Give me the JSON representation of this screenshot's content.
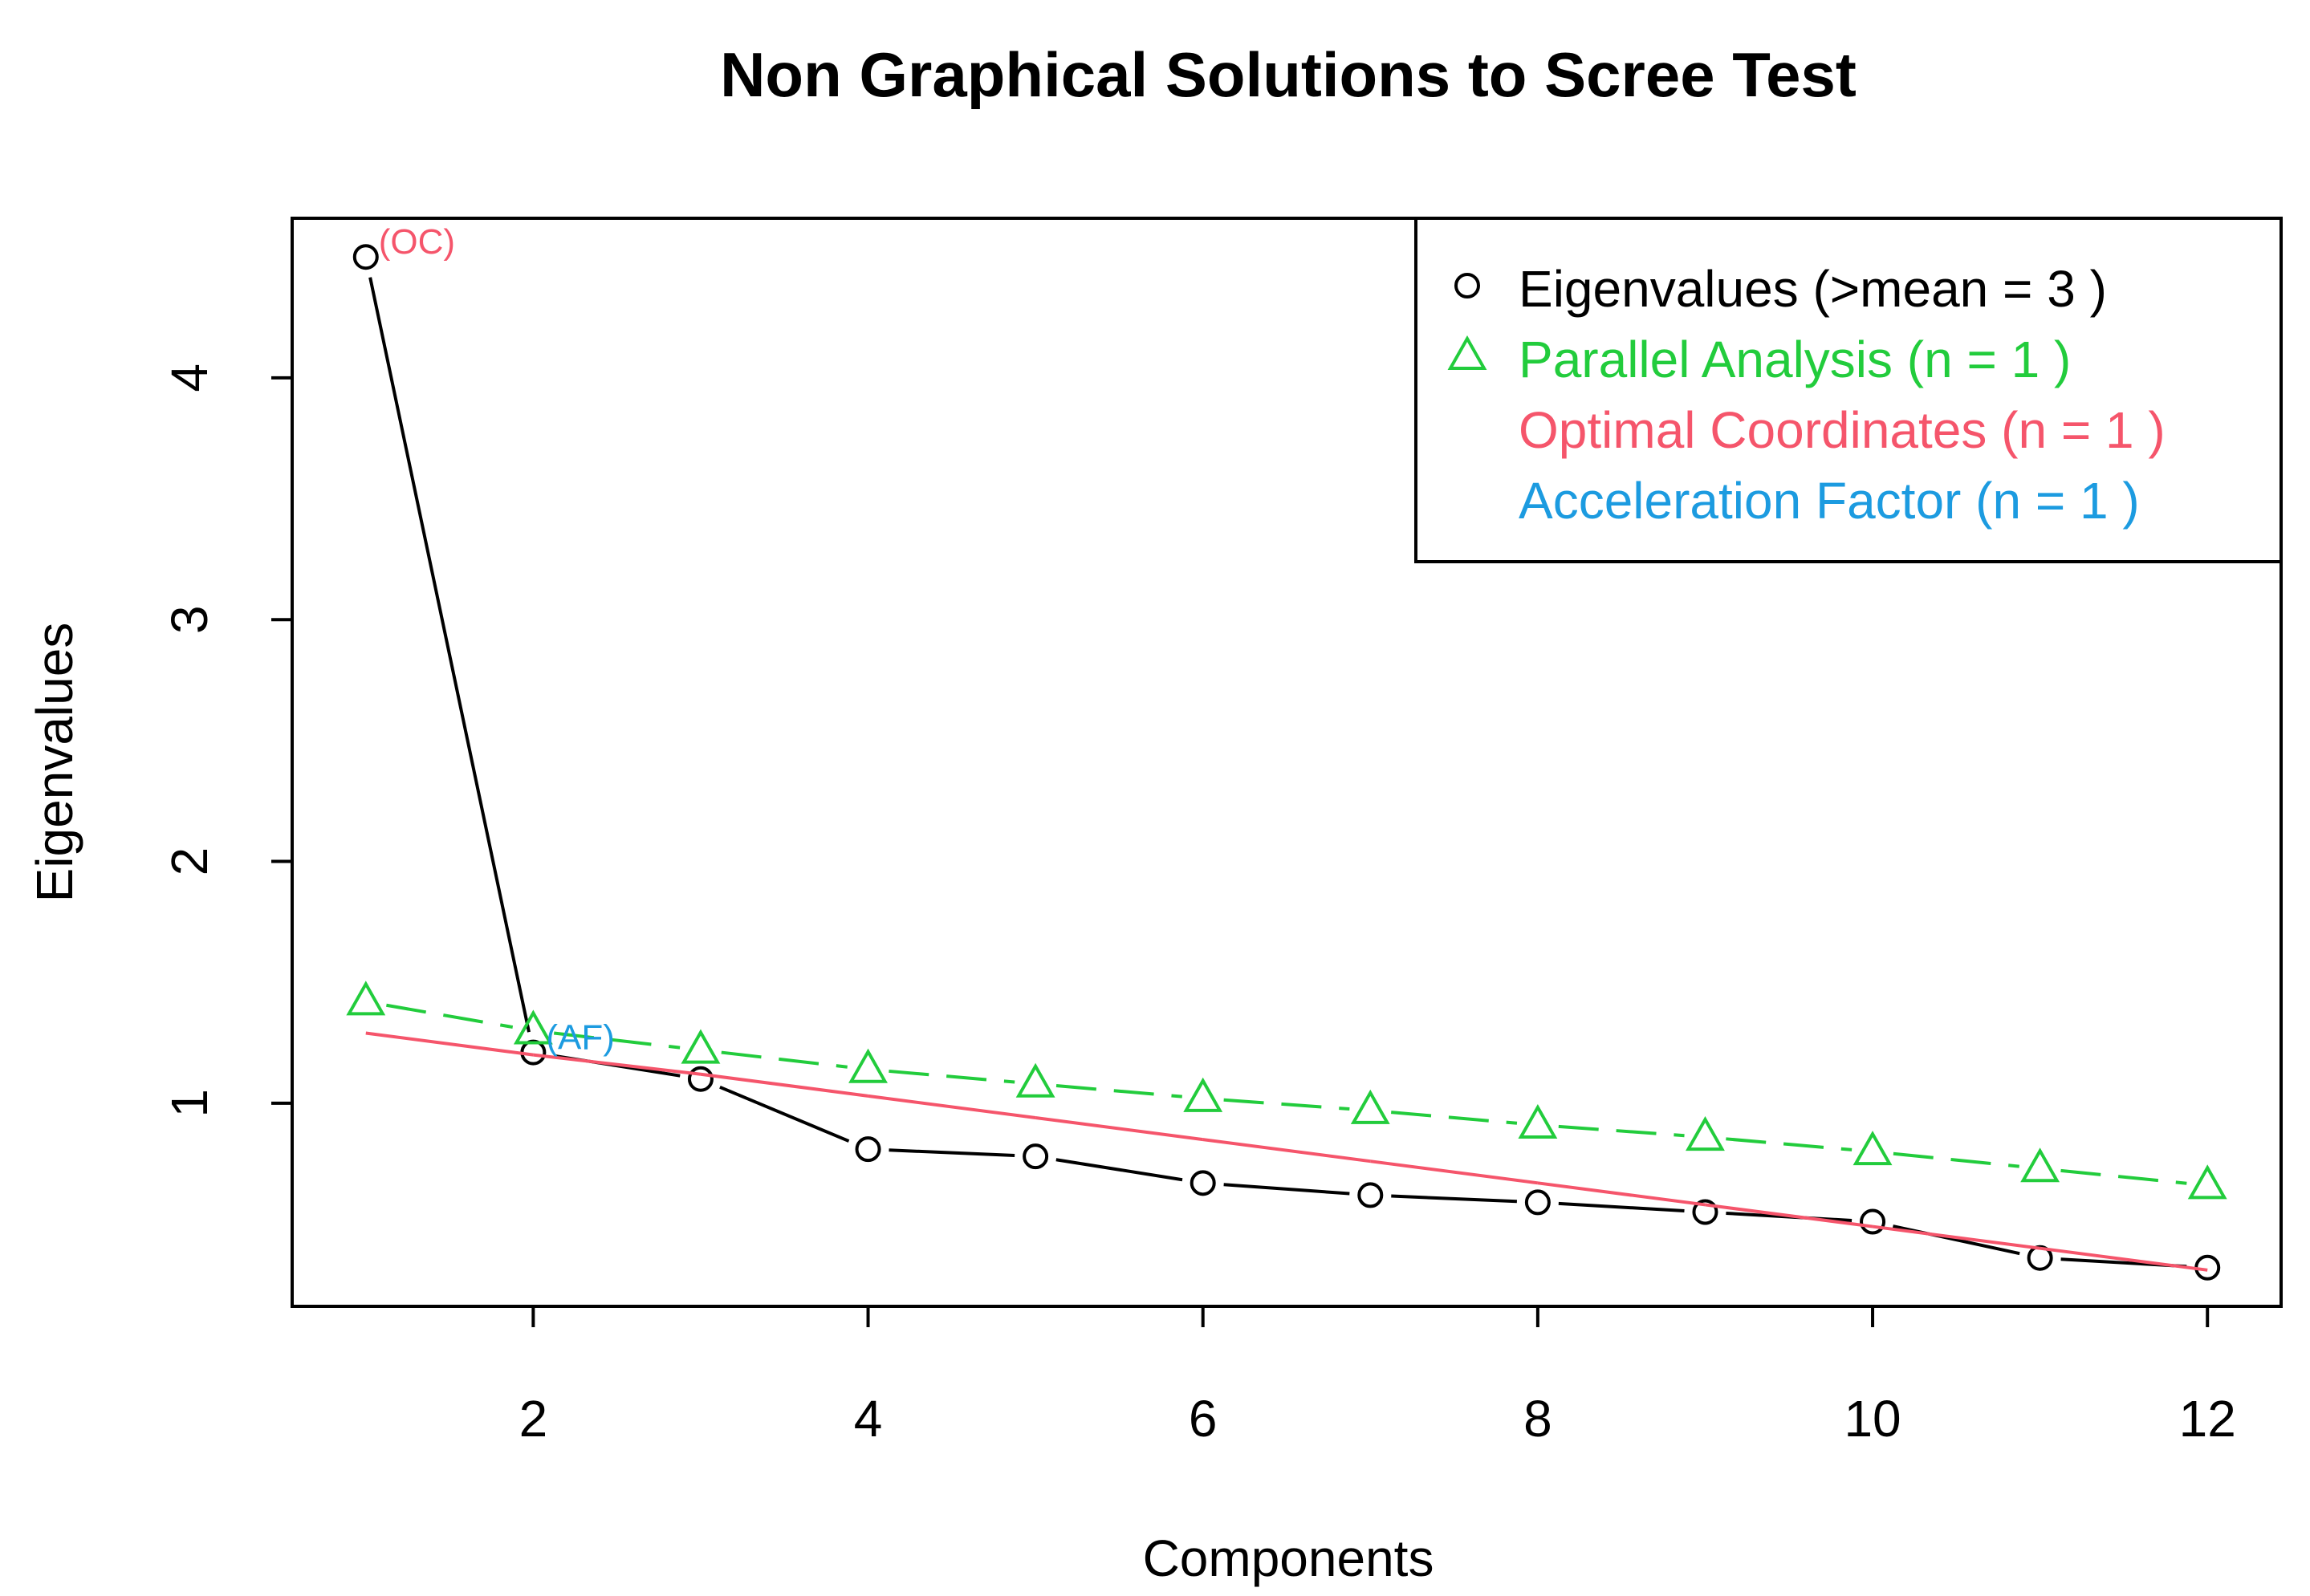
{
  "chart_data": {
    "type": "scatter",
    "title": "Non Graphical Solutions to Scree Test",
    "xlabel": "Components",
    "ylabel": "Eigenvalues",
    "x": [
      1,
      2,
      3,
      4,
      5,
      6,
      7,
      8,
      9,
      10,
      11,
      12
    ],
    "xlim": [
      0.56,
      12.44
    ],
    "ylim": [
      0.16,
      4.66
    ],
    "x_ticks": [
      "2",
      "4",
      "6",
      "8",
      "10",
      "12"
    ],
    "x_tick_values": [
      2,
      4,
      6,
      8,
      10,
      12
    ],
    "y_ticks": [
      "1",
      "2",
      "3",
      "4"
    ],
    "y_tick_values": [
      1,
      2,
      3,
      4
    ],
    "grid": false,
    "legend_position": "top-right",
    "series": [
      {
        "name": "Eigenvalues (>mean  =  3 )",
        "marker": "circle",
        "line": "solid",
        "color": "#000000",
        "values": [
          4.5,
          1.21,
          1.1,
          0.81,
          0.78,
          0.67,
          0.62,
          0.59,
          0.55,
          0.51,
          0.36,
          0.32
        ]
      },
      {
        "name": "Parallel Analysis (n =  1 )",
        "marker": "triangle",
        "line": "dashed",
        "color": "#22CC3C",
        "values": [
          1.42,
          1.3,
          1.22,
          1.14,
          1.08,
          1.02,
          0.97,
          0.91,
          0.86,
          0.8,
          0.73,
          0.66
        ]
      },
      {
        "name": "Optimal Coordinates (n =  1 )",
        "marker": "none",
        "line": "solid",
        "color": "#F5556B",
        "values": [
          1.29,
          1.2,
          1.12,
          1.03,
          0.94,
          0.85,
          0.76,
          0.67,
          0.58,
          0.49,
          0.4,
          0.31
        ]
      },
      {
        "name": "Acceleration Factor (n =  1 )",
        "marker": "none",
        "line": "none",
        "color": "#1C9BE0",
        "values": []
      }
    ],
    "annotations": [
      {
        "text": "(OC)",
        "x": 1,
        "y": 4.5,
        "color": "#F5556B"
      },
      {
        "text": "(AF)",
        "x": 2,
        "y": 1.21,
        "color": "#1C9BE0"
      }
    ]
  }
}
